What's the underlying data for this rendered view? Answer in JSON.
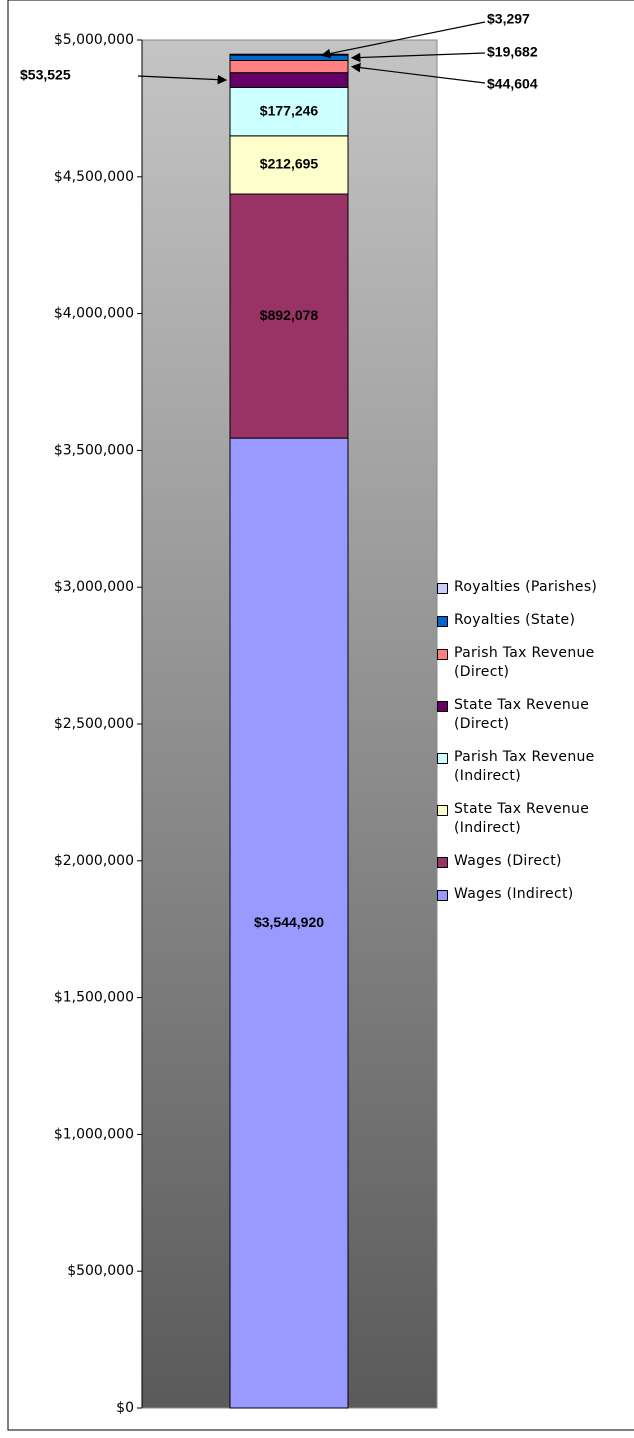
{
  "chart_data": {
    "type": "stacked_bar",
    "series": [
      {
        "name": "Wages (Indirect)",
        "color": "#9999ff",
        "values": [
          3544920
        ],
        "value_labels": [
          "$3,544,920"
        ]
      },
      {
        "name": "Wages (Direct)",
        "color": "#993366",
        "values": [
          892078
        ],
        "value_labels": [
          "$892,078"
        ]
      },
      {
        "name": "State Tax Revenue (Indirect)",
        "color": "#ffffcc",
        "values": [
          212695
        ],
        "value_labels": [
          "$212,695"
        ]
      },
      {
        "name": "Parish Tax Revenue (Indirect)",
        "color": "#ccffff",
        "values": [
          177246
        ],
        "value_labels": [
          "$177,246"
        ]
      },
      {
        "name": "State Tax Revenue (Direct)",
        "color": "#660066",
        "values": [
          53525
        ],
        "value_labels": [
          "$53,525"
        ]
      },
      {
        "name": "Parish Tax Revenue (Direct)",
        "color": "#ff8080",
        "values": [
          44604
        ],
        "value_labels": [
          "$44,604"
        ]
      },
      {
        "name": "Royalties (State)",
        "color": "#0066cc",
        "values": [
          19682
        ],
        "value_labels": [
          "$19,682"
        ]
      },
      {
        "name": "Royalties (Parishes)",
        "color": "#ccccff",
        "values": [
          3297
        ],
        "value_labels": [
          "$3,297"
        ]
      }
    ],
    "ylim": [
      0,
      5000000
    ],
    "yticks": [
      {
        "value": 0,
        "label": "$0"
      },
      {
        "value": 500000,
        "label": "$500,000"
      },
      {
        "value": 1000000,
        "label": "$1,000,000"
      },
      {
        "value": 1500000,
        "label": "$1,500,000"
      },
      {
        "value": 2000000,
        "label": "$2,000,000"
      },
      {
        "value": 2500000,
        "label": "$2,500,000"
      },
      {
        "value": 3000000,
        "label": "$3,000,000"
      },
      {
        "value": 3500000,
        "label": "$3,500,000"
      },
      {
        "value": 4000000,
        "label": "$4,000,000"
      },
      {
        "value": 4500000,
        "label": "$4,500,000"
      },
      {
        "value": 5000000,
        "label": "$5,000,000"
      }
    ],
    "legend": "right"
  }
}
